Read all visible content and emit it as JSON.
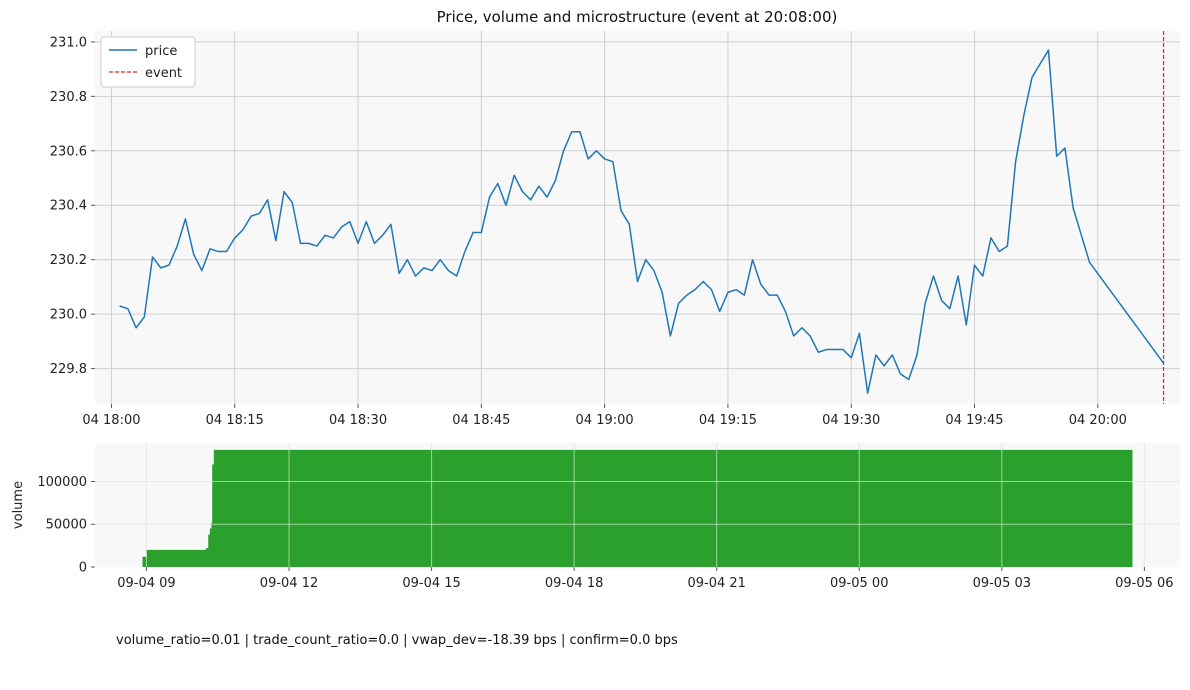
{
  "chart_data": [
    {
      "type": "line",
      "title": "Price, volume and microstructure (event at 20:08:00)",
      "ylim": [
        229.67,
        231.04
      ],
      "xlim": [
        "2024-09-04T17:58:00",
        "2024-09-04T20:10:00"
      ],
      "y_ticks": [
        229.8,
        230.0,
        230.2,
        230.4,
        230.6,
        230.8,
        231.0
      ],
      "y_tick_labels": [
        "229.8",
        "230.0",
        "230.2",
        "230.4",
        "230.6",
        "230.8",
        "231.0"
      ],
      "x_ticks": [
        "2024-09-04T18:00:00",
        "2024-09-04T18:15:00",
        "2024-09-04T18:30:00",
        "2024-09-04T18:45:00",
        "2024-09-04T19:00:00",
        "2024-09-04T19:15:00",
        "2024-09-04T19:30:00",
        "2024-09-04T19:45:00",
        "2024-09-04T20:00:00"
      ],
      "x_tick_labels": [
        "04 18:00",
        "04 18:15",
        "04 18:30",
        "04 18:45",
        "04 19:00",
        "04 19:15",
        "04 19:30",
        "04 19:45",
        "04 20:00"
      ],
      "grid": true,
      "legend": {
        "placement": "top-left",
        "entries": [
          "price",
          "event"
        ]
      },
      "colors": {
        "price": "#1f77b4",
        "event": "#d62728"
      },
      "series": [
        {
          "name": "price",
          "x": [
            "18:01",
            "18:02",
            "18:03",
            "18:04",
            "18:05",
            "18:06",
            "18:07",
            "18:08",
            "18:09",
            "18:10",
            "18:11",
            "18:12",
            "18:13",
            "18:14",
            "18:15",
            "18:16",
            "18:17",
            "18:18",
            "18:19",
            "18:20",
            "18:21",
            "18:22",
            "18:23",
            "18:24",
            "18:25",
            "18:26",
            "18:27",
            "18:28",
            "18:29",
            "18:30",
            "18:31",
            "18:32",
            "18:33",
            "18:34",
            "18:35",
            "18:36",
            "18:37",
            "18:38",
            "18:39",
            "18:40",
            "18:41",
            "18:42",
            "18:43",
            "18:44",
            "18:45",
            "18:46",
            "18:47",
            "18:48",
            "18:49",
            "18:50",
            "18:51",
            "18:52",
            "18:53",
            "18:54",
            "18:55",
            "18:56",
            "18:57",
            "18:58",
            "18:59",
            "19:00",
            "19:01",
            "19:02",
            "19:03",
            "19:04",
            "19:05",
            "19:06",
            "19:07",
            "19:08",
            "19:09",
            "19:10",
            "19:11",
            "19:12",
            "19:13",
            "19:14",
            "19:15",
            "19:16",
            "19:17",
            "19:18",
            "19:19",
            "19:20",
            "19:21",
            "19:22",
            "19:23",
            "19:24",
            "19:25",
            "19:26",
            "19:27",
            "19:28",
            "19:29",
            "19:30",
            "19:31",
            "19:32",
            "19:33",
            "19:34",
            "19:35",
            "19:36",
            "19:37",
            "19:38",
            "19:39",
            "19:40",
            "19:41",
            "19:42",
            "19:43",
            "19:44",
            "19:45",
            "19:46",
            "19:47",
            "19:48",
            "19:49",
            "19:50",
            "19:51",
            "19:52",
            "19:53",
            "19:54",
            "19:55",
            "19:56",
            "19:57",
            "19:58",
            "19:59",
            "20:08"
          ],
          "values": [
            230.03,
            230.02,
            229.95,
            229.99,
            230.21,
            230.17,
            230.18,
            230.25,
            230.35,
            230.22,
            230.16,
            230.24,
            230.23,
            230.23,
            230.28,
            230.31,
            230.36,
            230.37,
            230.42,
            230.27,
            230.45,
            230.41,
            230.26,
            230.26,
            230.25,
            230.29,
            230.28,
            230.32,
            230.34,
            230.26,
            230.34,
            230.26,
            230.29,
            230.33,
            230.15,
            230.2,
            230.14,
            230.17,
            230.16,
            230.2,
            230.16,
            230.14,
            230.23,
            230.3,
            230.3,
            230.43,
            230.48,
            230.4,
            230.51,
            230.45,
            230.42,
            230.47,
            230.43,
            230.49,
            230.6,
            230.67,
            230.67,
            230.57,
            230.6,
            230.57,
            230.56,
            230.38,
            230.33,
            230.12,
            230.2,
            230.16,
            230.08,
            229.92,
            230.04,
            230.07,
            230.09,
            230.12,
            230.09,
            230.01,
            230.08,
            230.09,
            230.07,
            230.2,
            230.11,
            230.07,
            230.07,
            230.01,
            229.92,
            229.95,
            229.92,
            229.86,
            229.87,
            229.87,
            229.87,
            229.84,
            229.93,
            229.71,
            229.85,
            229.81,
            229.85,
            229.78,
            229.76,
            229.85,
            230.04,
            230.14,
            230.05,
            230.02,
            230.14,
            229.96,
            230.18,
            230.14,
            230.28,
            230.23,
            230.25,
            230.56,
            230.73,
            230.87,
            230.92,
            230.97,
            230.58,
            230.61,
            230.39,
            230.29,
            230.19,
            229.82
          ]
        }
      ],
      "event_x": "20:08"
    },
    {
      "type": "area",
      "ylabel": "volume",
      "ylim": [
        0,
        145000
      ],
      "xlim": [
        "2024-09-04T07:55:00",
        "2024-09-05T06:45:00"
      ],
      "y_ticks": [
        0,
        50000,
        100000
      ],
      "y_tick_labels": [
        "0",
        "50000",
        "100000"
      ],
      "x_ticks": [
        "2024-09-04T09:00:00",
        "2024-09-04T12:00:00",
        "2024-09-04T15:00:00",
        "2024-09-04T18:00:00",
        "2024-09-04T21:00:00",
        "2024-09-05T00:00:00",
        "2024-09-05T03:00:00",
        "2024-09-05T06:00:00"
      ],
      "x_tick_labels": [
        "09-04 09",
        "09-04 12",
        "09-04 15",
        "09-04 18",
        "09-04 21",
        "09-05 00",
        "09-05 03",
        "09-05 06"
      ],
      "grid": true,
      "colors": {
        "volume": "#2ca02c"
      },
      "series": [
        {
          "name": "volume",
          "x": [
            "2024-09-04T08:55:00",
            "2024-09-04T09:00:00",
            "2024-09-04T10:05:00",
            "2024-09-04T10:15:00",
            "2024-09-04T10:18:00",
            "2024-09-04T10:20:00",
            "2024-09-04T10:22:00",
            "2024-09-04T10:23:00",
            "2024-09-04T10:25:00",
            "2024-09-05T05:45:00"
          ],
          "values": [
            12000,
            20000,
            20000,
            22000,
            38000,
            45000,
            52000,
            120000,
            137000,
            137000
          ]
        }
      ]
    }
  ],
  "footer": {
    "text": "volume_ratio=0.01 | trade_count_ratio=0.0 | vwap_dev=-18.39 bps | confirm=0.0 bps"
  }
}
